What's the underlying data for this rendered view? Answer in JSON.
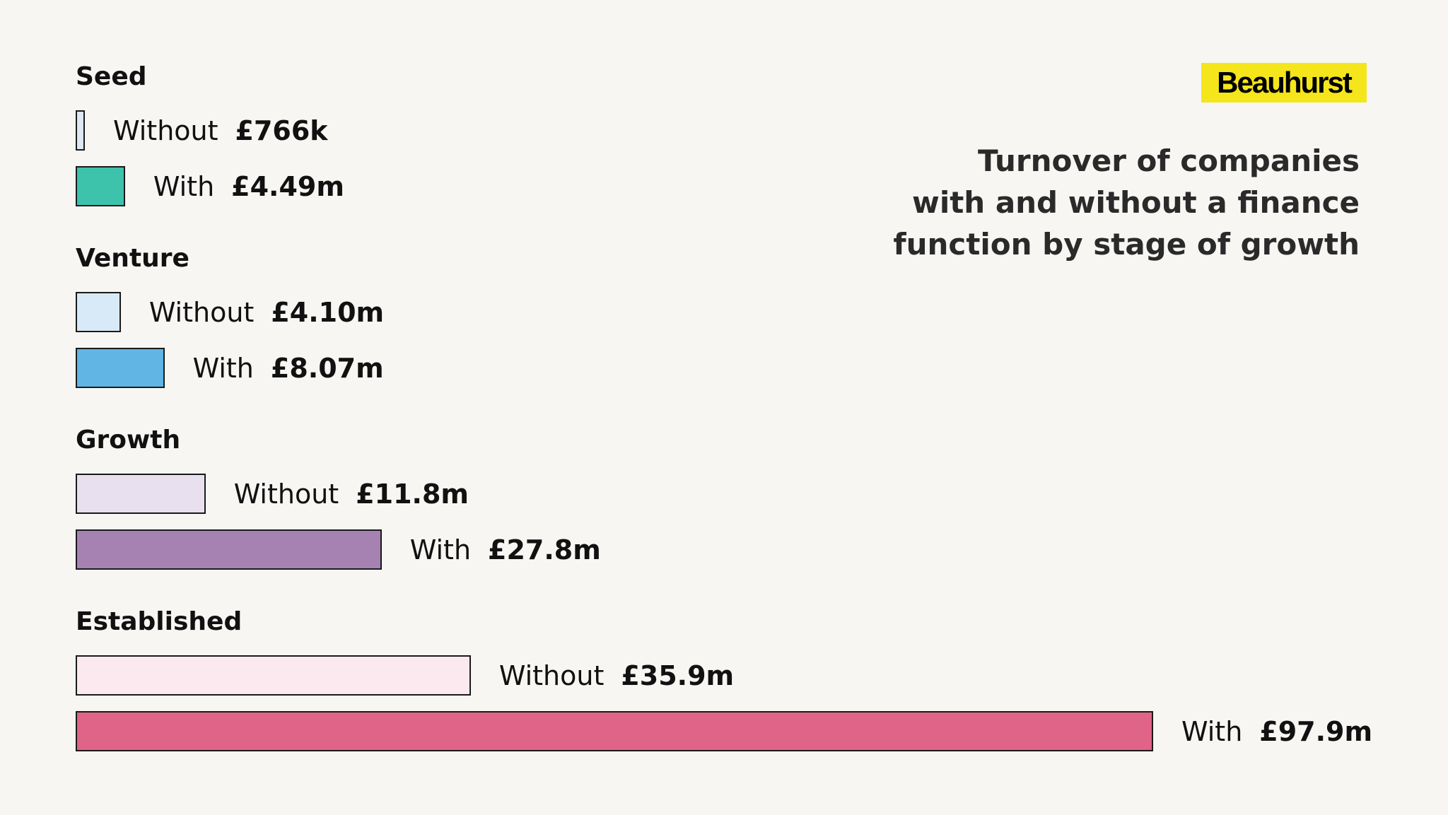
{
  "brand": {
    "name": "Beauhurst",
    "color": "#f5e51b"
  },
  "chart_data": {
    "type": "bar",
    "orientation": "horizontal",
    "title_lines": [
      "Turnover of companies",
      "with and without a finance",
      "function by stage of growth"
    ],
    "unit": "£",
    "groups": [
      {
        "name": "Seed",
        "bars": [
          {
            "series": "Without",
            "value": 0.766,
            "label": "£766k",
            "color": "#dce8f4"
          },
          {
            "series": "With",
            "value": 4.49,
            "label": "£4.49m",
            "color": "#3dc2ac"
          }
        ]
      },
      {
        "name": "Venture",
        "bars": [
          {
            "series": "Without",
            "value": 4.1,
            "label": "£4.10m",
            "color": "#d8eaf8"
          },
          {
            "series": "With",
            "value": 8.07,
            "label": "£8.07m",
            "color": "#60b5e5"
          }
        ]
      },
      {
        "name": "Growth",
        "bars": [
          {
            "series": "Without",
            "value": 11.8,
            "label": "£11.8m",
            "color": "#e8e0ef"
          },
          {
            "series": "With",
            "value": 27.8,
            "label": "£27.8m",
            "color": "#a682b3"
          }
        ]
      },
      {
        "name": "Established",
        "bars": [
          {
            "series": "Without",
            "value": 35.9,
            "label": "£35.9m",
            "color": "#fbe9ef"
          },
          {
            "series": "With",
            "value": 97.9,
            "label": "£97.9m",
            "color": "#e06388"
          }
        ]
      }
    ],
    "axis_max": 97.9,
    "grid": false,
    "legend": "none"
  }
}
